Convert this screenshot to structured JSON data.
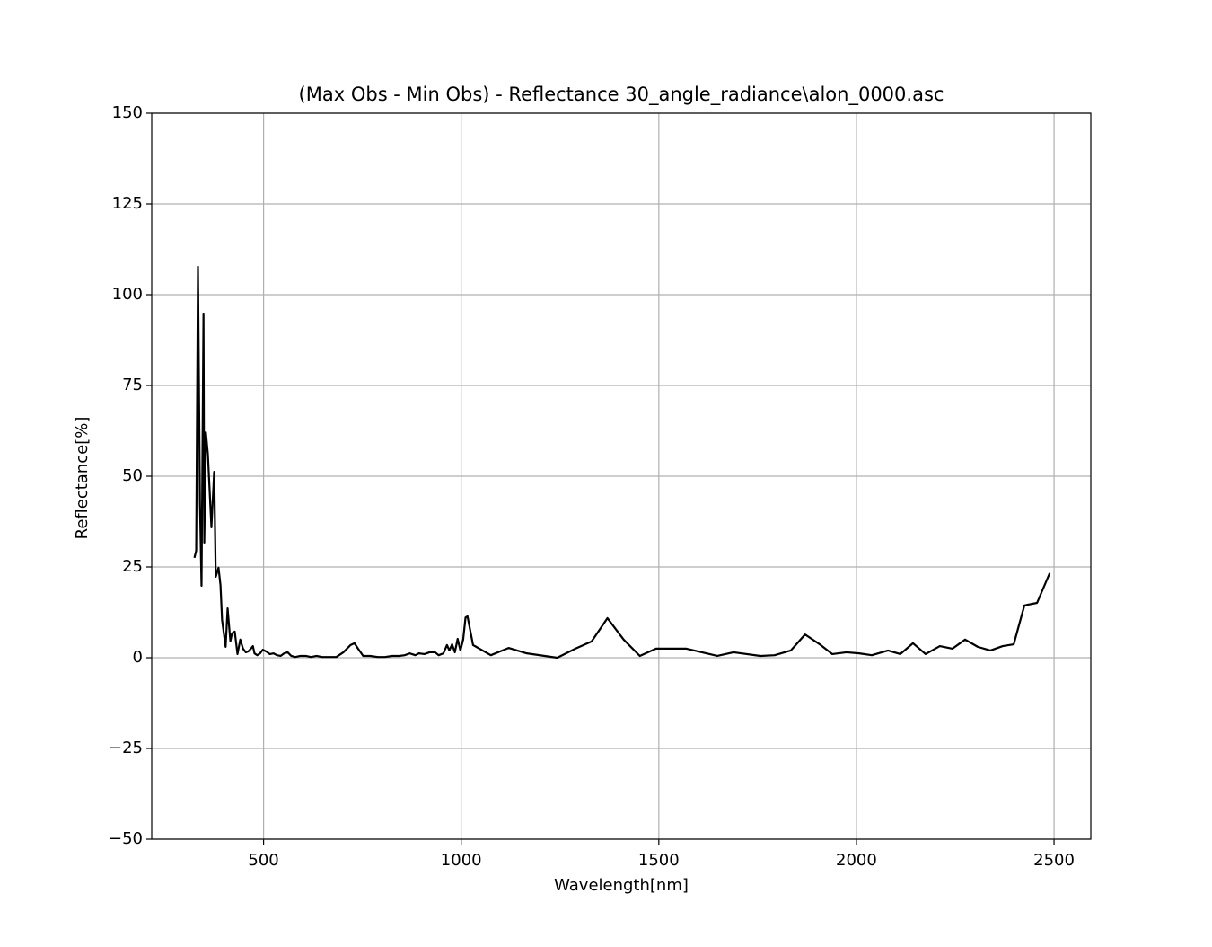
{
  "chart_data": {
    "type": "line",
    "title": "(Max Obs - Min Obs) - Reflectance 30_angle_radiance\\alon_0000.asc",
    "x_label": "Wavelength[nm]",
    "y_label": "Reflectance[%]",
    "x": [
      325,
      329.5,
      334,
      339,
      343,
      348,
      350,
      354,
      359,
      363,
      368,
      375,
      379,
      386,
      391,
      395,
      404,
      409,
      416,
      420,
      427,
      434,
      441,
      448,
      455,
      461,
      468,
      473,
      477,
      484,
      491,
      498,
      507,
      516,
      525,
      534,
      543,
      552,
      561,
      570,
      580,
      593,
      607,
      620,
      634,
      648,
      666,
      684,
      702,
      720,
      730,
      739,
      752,
      770,
      789,
      807,
      825,
      843,
      857,
      870,
      884,
      893,
      907,
      920,
      934,
      943,
      955,
      964,
      970,
      977,
      984,
      991,
      998,
      1005,
      1011,
      1016,
      1030,
      1075,
      1120,
      1166,
      1243,
      1289,
      1330,
      1370,
      1411,
      1452,
      1493,
      1570,
      1648,
      1689,
      1757,
      1793,
      1834,
      1870,
      1907,
      1939,
      1975,
      2007,
      2039,
      2080,
      2111,
      2143,
      2175,
      2211,
      2243,
      2275,
      2307,
      2339,
      2370,
      2398,
      2425,
      2457,
      2489
    ],
    "values": [
      27.5,
      29.5,
      107.7,
      42.6,
      19.8,
      94.8,
      31.7,
      62.1,
      56.2,
      47.3,
      35.9,
      51.2,
      22.3,
      24.8,
      20,
      10.4,
      3,
      13.6,
      4.5,
      6.7,
      7.2,
      1,
      5,
      2.5,
      1.5,
      1.7,
      2.5,
      3.2,
      1.2,
      0.7,
      1.2,
      2.2,
      1.7,
      1,
      1.2,
      0.7,
      0.5,
      1.2,
      1.5,
      0.5,
      0.2,
      0.5,
      0.5,
      0.2,
      0.5,
      0.2,
      0.2,
      0.2,
      1.5,
      3.5,
      4,
      2.5,
      0.5,
      0.5,
      0.2,
      0.2,
      0.5,
      0.5,
      0.7,
      1.2,
      0.7,
      1.2,
      1,
      1.5,
      1.5,
      0.7,
      1.2,
      3.5,
      2,
      3.7,
      1.5,
      5.2,
      2,
      5,
      11.1,
      11.4,
      3.5,
      0.7,
      2.7,
      1.2,
      0,
      2.5,
      4.5,
      10.9,
      5,
      0.5,
      2.5,
      2.5,
      0.5,
      1.5,
      0.5,
      0.7,
      2,
      6.4,
      3.7,
      1,
      1.5,
      1.2,
      0.7,
      2,
      1,
      4,
      1,
      3.2,
      2.5,
      5,
      3,
      2,
      3.2,
      3.7,
      14.4,
      15.1,
      23.3
    ],
    "color": "#000000",
    "xlim": [
      217,
      2593
    ],
    "xticks": [
      500,
      1000,
      1500,
      2000,
      2500
    ],
    "ylim": [
      -50,
      150
    ],
    "yticks": [
      {
        "value": -50,
        "label": "−50"
      },
      {
        "value": -25,
        "label": "−25"
      },
      0,
      25,
      50,
      75,
      100,
      125,
      150
    ],
    "grid": true
  }
}
